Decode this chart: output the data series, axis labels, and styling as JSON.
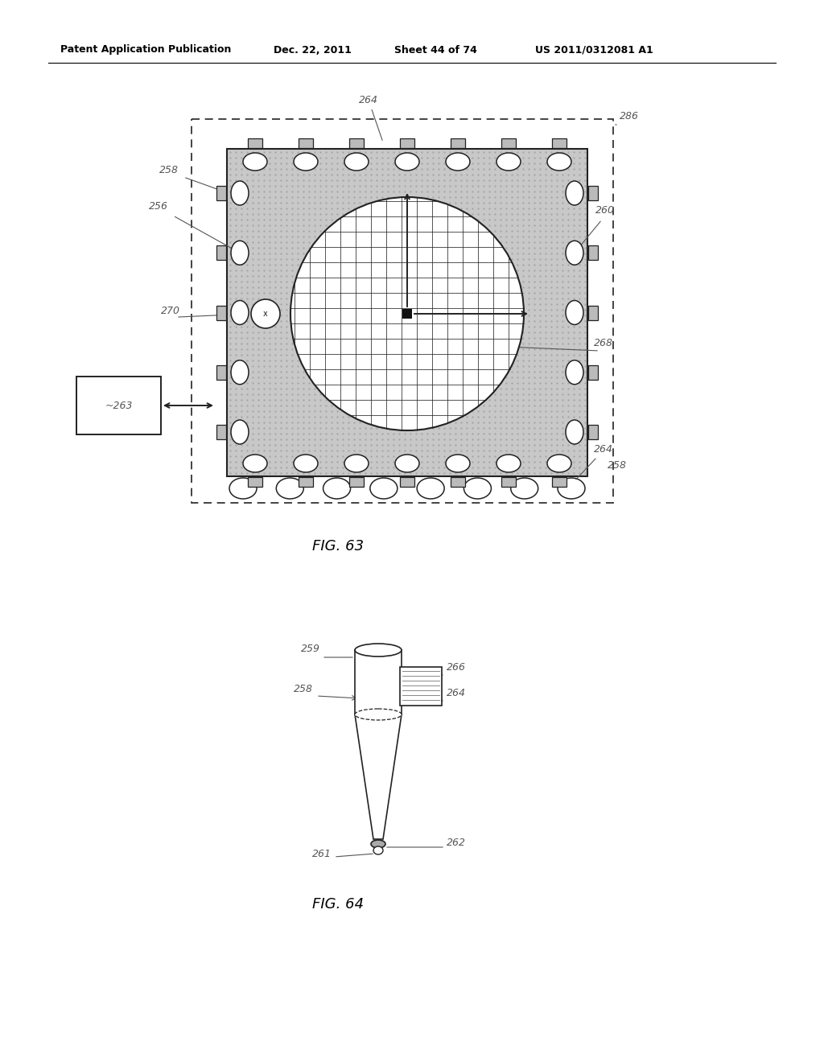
{
  "bg_color": "#ffffff",
  "header_text": "Patent Application Publication",
  "header_date": "Dec. 22, 2011",
  "header_sheet": "Sheet 44 of 74",
  "header_patent": "US 2011/0312081 A1",
  "fig63_label": "FIG. 63",
  "fig64_label": "FIG. 64",
  "label_color": "#555555",
  "line_color": "#222222",
  "stipple_fill": "#c8c8c8",
  "ball_fill": "#ffffff",
  "chip_fill": "#dddddd"
}
